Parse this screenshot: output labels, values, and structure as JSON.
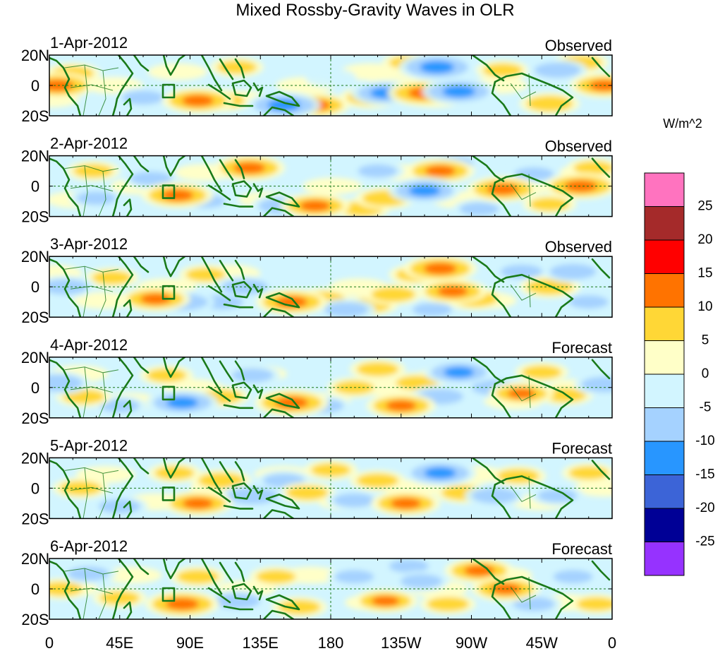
{
  "title": "Mixed Rossby-Gravity Waves in OLR",
  "colors": {
    "coast": "#1a7a1a",
    "equator": "#1a7a1a",
    "frame": "#000000"
  },
  "panels": [
    {
      "date": "1-Apr-2012",
      "label": "Observed"
    },
    {
      "date": "2-Apr-2012",
      "label": "Observed"
    },
    {
      "date": "3-Apr-2012",
      "label": "Observed"
    },
    {
      "date": "4-Apr-2012",
      "label": "Forecast"
    },
    {
      "date": "5-Apr-2012",
      "label": "Forecast"
    },
    {
      "date": "6-Apr-2012",
      "label": "Forecast"
    }
  ],
  "lat_labels": [
    "20N",
    "0",
    "20S"
  ],
  "lon_labels": [
    "0",
    "45E",
    "90E",
    "135E",
    "180",
    "135W",
    "90W",
    "45W",
    "0"
  ],
  "colorbar": {
    "units": "W/m^2",
    "boundaries": [
      -25,
      -20,
      -15,
      -10,
      -5,
      0,
      5,
      10,
      15,
      20,
      25
    ],
    "tick_labels": [
      "25",
      "20",
      "15",
      "10",
      "5",
      "0",
      "-5",
      "-10",
      "-15",
      "-20",
      "-25"
    ],
    "colors_top_to_bottom": [
      "#ff73bf",
      "#a52a2a",
      "#ff0000",
      "#ff7300",
      "#ffd736",
      "#ffffc8",
      "#d2f5ff",
      "#a5d2ff",
      "#2896ff",
      "#3c64d7",
      "#000096",
      "#9632ff"
    ]
  },
  "chart_data": {
    "type": "heatmap",
    "title": "Mixed Rossby-Gravity Waves in OLR",
    "variable": "OLR anomaly (W/m^2)",
    "lon_range": [
      0,
      360
    ],
    "lat_range": [
      -20,
      20
    ],
    "panels": [
      "1-Apr-2012 Observed",
      "2-Apr-2012 Observed",
      "3-Apr-2012 Observed",
      "4-Apr-2012 Forecast",
      "5-Apr-2012 Forecast",
      "6-Apr-2012 Forecast"
    ],
    "anomalies": [
      [
        {
          "lon": 5,
          "lat": 0,
          "v": 14
        },
        {
          "lon": 15,
          "lat": 8,
          "v": 6
        },
        {
          "lon": 40,
          "lat": 12,
          "v": -4
        },
        {
          "lon": 95,
          "lat": -10,
          "v": 13
        },
        {
          "lon": 110,
          "lat": -10,
          "v": 8
        },
        {
          "lon": 150,
          "lat": -13,
          "v": -14
        },
        {
          "lon": 170,
          "lat": -13,
          "v": 12
        },
        {
          "lon": 205,
          "lat": -8,
          "v": 8
        },
        {
          "lon": 215,
          "lat": -5,
          "v": -12
        },
        {
          "lon": 220,
          "lat": 5,
          "v": 4
        },
        {
          "lon": 248,
          "lat": 12,
          "v": -15
        },
        {
          "lon": 240,
          "lat": -5,
          "v": 14
        },
        {
          "lon": 262,
          "lat": -4,
          "v": -14
        },
        {
          "lon": 290,
          "lat": 10,
          "v": 5
        },
        {
          "lon": 325,
          "lat": 10,
          "v": -8
        },
        {
          "lon": 320,
          "lat": -12,
          "v": 8
        },
        {
          "lon": 355,
          "lat": 0,
          "v": 12
        },
        {
          "lon": 120,
          "lat": 12,
          "v": 5
        },
        {
          "lon": 60,
          "lat": -8,
          "v": -6
        },
        {
          "lon": 230,
          "lat": 15,
          "v": 5
        },
        {
          "lon": 180,
          "lat": 5,
          "v": -4
        },
        {
          "lon": 340,
          "lat": 15,
          "v": 6
        }
      ],
      [
        {
          "lon": 28,
          "lat": 10,
          "v": 5
        },
        {
          "lon": 30,
          "lat": -8,
          "v": -5
        },
        {
          "lon": 65,
          "lat": 5,
          "v": -6
        },
        {
          "lon": 82,
          "lat": -6,
          "v": 13
        },
        {
          "lon": 100,
          "lat": -10,
          "v": -5
        },
        {
          "lon": 128,
          "lat": 12,
          "v": 13
        },
        {
          "lon": 150,
          "lat": -13,
          "v": -10
        },
        {
          "lon": 170,
          "lat": -13,
          "v": 12
        },
        {
          "lon": 200,
          "lat": -15,
          "v": 6
        },
        {
          "lon": 215,
          "lat": -8,
          "v": 8
        },
        {
          "lon": 210,
          "lat": 10,
          "v": -5
        },
        {
          "lon": 240,
          "lat": -3,
          "v": -13
        },
        {
          "lon": 250,
          "lat": 10,
          "v": 12
        },
        {
          "lon": 258,
          "lat": 15,
          "v": -6
        },
        {
          "lon": 290,
          "lat": -2,
          "v": 13
        },
        {
          "lon": 275,
          "lat": -15,
          "v": -5
        },
        {
          "lon": 310,
          "lat": 8,
          "v": -5
        },
        {
          "lon": 340,
          "lat": 0,
          "v": 14
        },
        {
          "lon": 348,
          "lat": 12,
          "v": 5
        },
        {
          "lon": 320,
          "lat": -12,
          "v": 5
        }
      ],
      [
        {
          "lon": 10,
          "lat": 0,
          "v": -8
        },
        {
          "lon": 40,
          "lat": 6,
          "v": 5
        },
        {
          "lon": 68,
          "lat": -8,
          "v": 12
        },
        {
          "lon": 85,
          "lat": -10,
          "v": -10
        },
        {
          "lon": 100,
          "lat": 8,
          "v": 5
        },
        {
          "lon": 110,
          "lat": -10,
          "v": -7
        },
        {
          "lon": 125,
          "lat": 0,
          "v": -8
        },
        {
          "lon": 155,
          "lat": -10,
          "v": 13
        },
        {
          "lon": 175,
          "lat": -8,
          "v": 7
        },
        {
          "lon": 190,
          "lat": -15,
          "v": -7
        },
        {
          "lon": 205,
          "lat": -12,
          "v": 6
        },
        {
          "lon": 220,
          "lat": -5,
          "v": 7
        },
        {
          "lon": 235,
          "lat": 8,
          "v": 6
        },
        {
          "lon": 250,
          "lat": 12,
          "v": 14
        },
        {
          "lon": 258,
          "lat": -3,
          "v": 12
        },
        {
          "lon": 272,
          "lat": -8,
          "v": 8
        },
        {
          "lon": 302,
          "lat": 10,
          "v": -6
        },
        {
          "lon": 320,
          "lat": 0,
          "v": 8
        },
        {
          "lon": 335,
          "lat": 10,
          "v": -8
        },
        {
          "lon": 345,
          "lat": -10,
          "v": -5
        },
        {
          "lon": 245,
          "lat": -15,
          "v": -5
        }
      ],
      [
        {
          "lon": 5,
          "lat": 3,
          "v": -10
        },
        {
          "lon": 22,
          "lat": -6,
          "v": 6
        },
        {
          "lon": 75,
          "lat": 8,
          "v": 5
        },
        {
          "lon": 85,
          "lat": -10,
          "v": -13
        },
        {
          "lon": 110,
          "lat": -6,
          "v": 6
        },
        {
          "lon": 130,
          "lat": 8,
          "v": -6
        },
        {
          "lon": 155,
          "lat": -10,
          "v": 14
        },
        {
          "lon": 175,
          "lat": -12,
          "v": -6
        },
        {
          "lon": 210,
          "lat": 12,
          "v": 6
        },
        {
          "lon": 225,
          "lat": -12,
          "v": 12
        },
        {
          "lon": 235,
          "lat": 3,
          "v": 6
        },
        {
          "lon": 250,
          "lat": -6,
          "v": -8
        },
        {
          "lon": 262,
          "lat": 10,
          "v": -12
        },
        {
          "lon": 285,
          "lat": 0,
          "v": -8
        },
        {
          "lon": 302,
          "lat": -4,
          "v": 10
        },
        {
          "lon": 315,
          "lat": 10,
          "v": 5
        },
        {
          "lon": 330,
          "lat": -5,
          "v": 6
        },
        {
          "lon": 355,
          "lat": 2,
          "v": -8
        },
        {
          "lon": 195,
          "lat": 0,
          "v": 5
        },
        {
          "lon": 45,
          "lat": -12,
          "v": -5
        }
      ],
      [
        {
          "lon": 20,
          "lat": 0,
          "v": 6
        },
        {
          "lon": 45,
          "lat": -12,
          "v": -6
        },
        {
          "lon": 80,
          "lat": 10,
          "v": 5
        },
        {
          "lon": 95,
          "lat": -10,
          "v": 12
        },
        {
          "lon": 110,
          "lat": 5,
          "v": 8
        },
        {
          "lon": 130,
          "lat": -5,
          "v": -10
        },
        {
          "lon": 150,
          "lat": 5,
          "v": -6
        },
        {
          "lon": 165,
          "lat": -3,
          "v": 6
        },
        {
          "lon": 180,
          "lat": 12,
          "v": 5
        },
        {
          "lon": 195,
          "lat": -8,
          "v": -6
        },
        {
          "lon": 210,
          "lat": 5,
          "v": 6
        },
        {
          "lon": 228,
          "lat": -10,
          "v": 12
        },
        {
          "lon": 250,
          "lat": 10,
          "v": -13
        },
        {
          "lon": 265,
          "lat": -3,
          "v": 7
        },
        {
          "lon": 285,
          "lat": -5,
          "v": -8
        },
        {
          "lon": 300,
          "lat": 8,
          "v": 6
        },
        {
          "lon": 325,
          "lat": -5,
          "v": -5
        },
        {
          "lon": 345,
          "lat": 10,
          "v": 5
        }
      ],
      [
        {
          "lon": 8,
          "lat": 0,
          "v": 6
        },
        {
          "lon": 25,
          "lat": 10,
          "v": -6
        },
        {
          "lon": 45,
          "lat": -6,
          "v": 5
        },
        {
          "lon": 85,
          "lat": -10,
          "v": 14
        },
        {
          "lon": 95,
          "lat": 8,
          "v": 6
        },
        {
          "lon": 120,
          "lat": -8,
          "v": -8
        },
        {
          "lon": 145,
          "lat": 8,
          "v": 5
        },
        {
          "lon": 160,
          "lat": -12,
          "v": 6
        },
        {
          "lon": 195,
          "lat": 8,
          "v": -5
        },
        {
          "lon": 215,
          "lat": -8,
          "v": 10
        },
        {
          "lon": 238,
          "lat": 5,
          "v": -6
        },
        {
          "lon": 255,
          "lat": -10,
          "v": 6
        },
        {
          "lon": 275,
          "lat": 12,
          "v": 12
        },
        {
          "lon": 292,
          "lat": 0,
          "v": 12
        },
        {
          "lon": 310,
          "lat": -10,
          "v": -6
        },
        {
          "lon": 335,
          "lat": 8,
          "v": -5
        },
        {
          "lon": 350,
          "lat": -10,
          "v": 5
        },
        {
          "lon": 230,
          "lat": 15,
          "v": -5
        }
      ]
    ]
  }
}
